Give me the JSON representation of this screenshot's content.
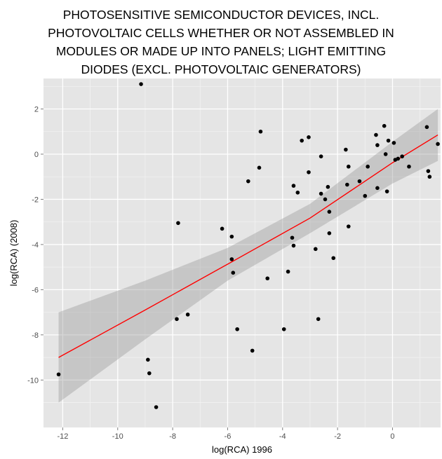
{
  "chart_data": {
    "type": "scatter",
    "title_lines": [
      "PHOTOSENSITIVE SEMICONDUCTOR DEVICES, INCL.",
      "PHOTOVOLTAIC CELLS WHETHER OR NOT ASSEMBLED IN",
      "MODULES OR MADE UP INTO PANELS; LIGHT EMITTING",
      "DIODES (EXCL. PHOTOVOLTAIC GENERATORS)"
    ],
    "xlabel": "log(RCA) 1996",
    "ylabel": "log(RCA) (2008)",
    "xlim": [
      -12.7,
      1.75
    ],
    "ylim": [
      -12.1,
      3.35
    ],
    "x_ticks": [
      -12,
      -10,
      -8,
      -6,
      -4,
      -2,
      0
    ],
    "y_ticks": [
      -10,
      -8,
      -6,
      -4,
      -2,
      0,
      2
    ],
    "grid": true,
    "colors": {
      "panel": "#e5e5e5",
      "grid_major": "#ffffff",
      "grid_minor": "#f2f2f2",
      "points": "#000000",
      "fit_line": "#ff0000",
      "confidence_band": "#999999"
    },
    "points": [
      {
        "x": -12.15,
        "y": -9.75
      },
      {
        "x": -9.15,
        "y": 3.1
      },
      {
        "x": -8.9,
        "y": -9.1
      },
      {
        "x": -8.85,
        "y": -9.7
      },
      {
        "x": -8.6,
        "y": -11.2
      },
      {
        "x": -7.85,
        "y": -7.3
      },
      {
        "x": -7.8,
        "y": -3.05
      },
      {
        "x": -7.45,
        "y": -7.1
      },
      {
        "x": -6.2,
        "y": -3.3
      },
      {
        "x": -5.85,
        "y": -3.65
      },
      {
        "x": -5.85,
        "y": -4.65
      },
      {
        "x": -5.8,
        "y": -5.25
      },
      {
        "x": -5.65,
        "y": -7.75
      },
      {
        "x": -5.25,
        "y": -1.2
      },
      {
        "x": -5.1,
        "y": -8.7
      },
      {
        "x": -4.85,
        "y": -0.6
      },
      {
        "x": -4.8,
        "y": 1.0
      },
      {
        "x": -4.55,
        "y": -5.5
      },
      {
        "x": -3.95,
        "y": -7.75
      },
      {
        "x": -3.8,
        "y": -5.2
      },
      {
        "x": -3.65,
        "y": -3.7
      },
      {
        "x": -3.6,
        "y": -4.05
      },
      {
        "x": -3.6,
        "y": -1.4
      },
      {
        "x": -3.45,
        "y": -1.7
      },
      {
        "x": -3.3,
        "y": 0.6
      },
      {
        "x": -3.05,
        "y": 0.75
      },
      {
        "x": -3.05,
        "y": -0.8
      },
      {
        "x": -2.8,
        "y": -4.2
      },
      {
        "x": -2.7,
        "y": -7.3
      },
      {
        "x": -2.6,
        "y": -0.1
      },
      {
        "x": -2.6,
        "y": -1.75
      },
      {
        "x": -2.45,
        "y": -2.0
      },
      {
        "x": -2.35,
        "y": -1.45
      },
      {
        "x": -2.3,
        "y": -2.55
      },
      {
        "x": -2.3,
        "y": -3.5
      },
      {
        "x": -2.15,
        "y": -4.6
      },
      {
        "x": -1.7,
        "y": 0.2
      },
      {
        "x": -1.65,
        "y": -1.35
      },
      {
        "x": -1.6,
        "y": -0.55
      },
      {
        "x": -1.6,
        "y": -3.2
      },
      {
        "x": -1.2,
        "y": -1.2
      },
      {
        "x": -1.0,
        "y": -1.85
      },
      {
        "x": -0.9,
        "y": -0.55
      },
      {
        "x": -0.6,
        "y": 0.85
      },
      {
        "x": -0.55,
        "y": -1.5
      },
      {
        "x": -0.55,
        "y": 0.4
      },
      {
        "x": -0.3,
        "y": 1.25
      },
      {
        "x": -0.25,
        "y": 0.0
      },
      {
        "x": -0.2,
        "y": -1.65
      },
      {
        "x": -0.15,
        "y": 0.6
      },
      {
        "x": 0.05,
        "y": 0.5
      },
      {
        "x": 0.1,
        "y": -0.25
      },
      {
        "x": 0.2,
        "y": -0.2
      },
      {
        "x": 0.35,
        "y": -0.1
      },
      {
        "x": 0.6,
        "y": -0.55
      },
      {
        "x": 1.25,
        "y": 1.2
      },
      {
        "x": 1.3,
        "y": -0.75
      },
      {
        "x": 1.35,
        "y": -1.0
      },
      {
        "x": 1.65,
        "y": 0.45
      }
    ],
    "fit_line": {
      "x": [
        -12.15,
        -9.0,
        -6.0,
        -3.0,
        0.0,
        1.65
      ],
      "y": [
        -9.0,
        -6.9,
        -4.87,
        -2.83,
        -0.38,
        0.85
      ]
    },
    "confidence_band": {
      "x": [
        -12.15,
        -9.0,
        -6.0,
        -3.0,
        0.0,
        1.65
      ],
      "lower": [
        -11.0,
        -8.2,
        -5.6,
        -3.5,
        -1.3,
        -0.3
      ],
      "upper": [
        -7.0,
        -5.6,
        -4.15,
        -2.2,
        0.55,
        2.0
      ]
    }
  }
}
